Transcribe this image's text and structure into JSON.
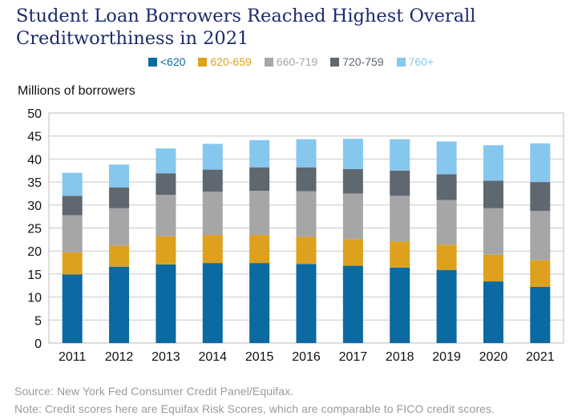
{
  "title_line1": "Student Loan Borrowers Reached Highest Overall",
  "title_line2": "Creditworthiness in 2021",
  "source": "Source: New York Fed Consumer Credit Panel/Equifax.",
  "note": "Note: Credit scores here are Equifax Risk Scores, which are comparable to FICO credit scores.",
  "chart_data": {
    "type": "bar",
    "stacked": true,
    "ylabel": "Millions of borrowers",
    "xlabel": "",
    "ylim": [
      0,
      50
    ],
    "yticks": [
      0,
      5,
      10,
      15,
      20,
      25,
      30,
      35,
      40,
      45,
      50
    ],
    "grid": "horizontal",
    "legend_position": "top",
    "categories": [
      "2011",
      "2012",
      "2013",
      "2014",
      "2015",
      "2016",
      "2017",
      "2018",
      "2019",
      "2020",
      "2021"
    ],
    "series": [
      {
        "name": "<620",
        "color": "#0a6aa1",
        "values": [
          14.9,
          16.6,
          17.1,
          17.4,
          17.4,
          17.2,
          16.8,
          16.4,
          15.9,
          13.4,
          12.2
        ]
      },
      {
        "name": "620-659",
        "color": "#dea11e",
        "values": [
          4.8,
          4.6,
          6.1,
          6.1,
          6.1,
          5.9,
          5.8,
          5.7,
          5.5,
          5.8,
          5.8
        ]
      },
      {
        "name": "660-719",
        "color": "#a6a6a8",
        "values": [
          8.1,
          8.1,
          9.0,
          9.4,
          9.6,
          9.9,
          9.9,
          9.9,
          9.7,
          10.1,
          10.7
        ]
      },
      {
        "name": "720-759",
        "color": "#5f6770",
        "values": [
          4.2,
          4.5,
          4.7,
          4.8,
          5.1,
          5.2,
          5.3,
          5.5,
          5.6,
          6.0,
          6.3
        ]
      },
      {
        "name": "760+",
        "color": "#86c7ee",
        "values": [
          5.0,
          5.0,
          5.4,
          5.6,
          5.9,
          6.1,
          6.6,
          6.8,
          7.1,
          7.7,
          8.4
        ]
      }
    ]
  }
}
